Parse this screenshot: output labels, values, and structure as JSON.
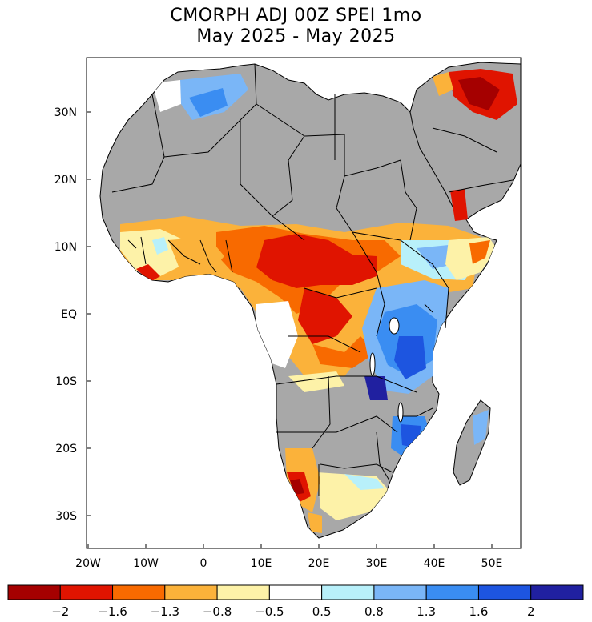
{
  "title_line1": "CMORPH ADJ 00Z SPEI 1mo",
  "title_line2": "May 2025 - May 2025",
  "lon_ticks": [
    "20W",
    "10W",
    "0",
    "10E",
    "20E",
    "30E",
    "40E",
    "50E"
  ],
  "lat_ticks": [
    "30N",
    "20N",
    "10N",
    "EQ",
    "10S",
    "20S",
    "30S"
  ],
  "colorbar": {
    "colors": [
      "#a50000",
      "#e01400",
      "#f86a00",
      "#fbb23a",
      "#fdf2a8",
      "#ffffff",
      "#b8f0fa",
      "#7ab6f7",
      "#3a8df2",
      "#1d55e0",
      "#2020a0"
    ],
    "labels": [
      "−2",
      "−1.6",
      "−1.3",
      "−0.8",
      "−0.5",
      "0.5",
      "0.8",
      "1.3",
      "1.6",
      "2"
    ]
  },
  "map_colors": {
    "land_no_data": "#a8a8a8",
    "ocean": "#ffffff",
    "border": "#000000"
  }
}
